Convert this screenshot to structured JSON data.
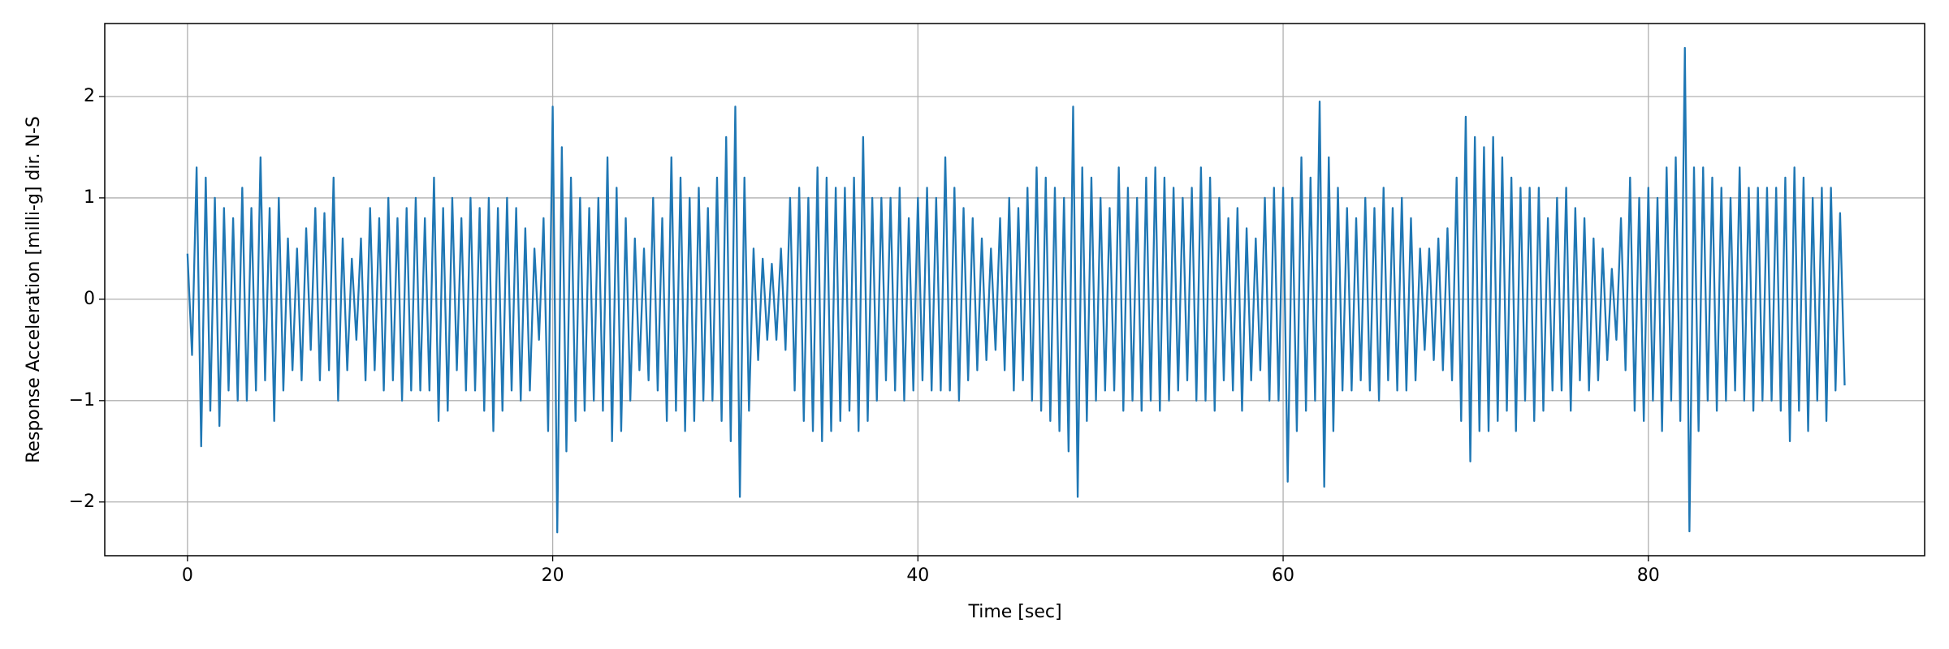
{
  "chart_data": {
    "type": "line",
    "xlabel": "Time [sec]",
    "ylabel": "Response Acceleration [milli-g] dir. N-S",
    "color": "#1f77b4",
    "grid": true,
    "xlim": [
      -4.53,
      95.13
    ],
    "ylim": [
      -2.53,
      2.72
    ],
    "xticks": [
      0,
      20,
      40,
      60,
      80
    ],
    "yticks": [
      {
        "value": -2,
        "label": "−2"
      },
      {
        "value": -1,
        "label": "−1"
      },
      0,
      1,
      2
    ],
    "x": [
      0,
      0.25,
      0.5,
      0.75,
      1,
      1.25,
      1.5,
      1.75,
      2,
      2.25,
      2.5,
      2.75,
      3,
      3.25,
      3.5,
      3.75,
      4,
      4.25,
      4.5,
      4.75,
      5,
      5.25,
      5.5,
      5.75,
      6,
      6.25,
      6.5,
      6.75,
      7,
      7.25,
      7.5,
      7.75,
      8,
      8.25,
      8.5,
      8.75,
      9,
      9.25,
      9.5,
      9.75,
      10,
      10.25,
      10.5,
      10.75,
      11,
      11.25,
      11.5,
      11.75,
      12,
      12.25,
      12.5,
      12.75,
      13,
      13.25,
      13.5,
      13.75,
      14,
      14.25,
      14.5,
      14.75,
      15,
      15.25,
      15.5,
      15.75,
      16,
      16.25,
      16.5,
      16.75,
      17,
      17.25,
      17.5,
      17.75,
      18,
      18.25,
      18.5,
      18.75,
      19,
      19.25,
      19.5,
      19.75,
      20,
      20.25,
      20.5,
      20.75,
      21,
      21.25,
      21.5,
      21.75,
      22,
      22.25,
      22.5,
      22.75,
      23,
      23.25,
      23.5,
      23.75,
      24,
      24.25,
      24.5,
      24.75,
      25,
      25.25,
      25.5,
      25.75,
      26,
      26.25,
      26.5,
      26.75,
      27,
      27.25,
      27.5,
      27.75,
      28,
      28.25,
      28.5,
      28.75,
      29,
      29.25,
      29.5,
      29.75,
      30,
      30.25,
      30.5,
      30.75,
      31,
      31.25,
      31.5,
      31.75,
      32,
      32.25,
      32.5,
      32.75,
      33,
      33.25,
      33.5,
      33.75,
      34,
      34.25,
      34.5,
      34.75,
      35,
      35.25,
      35.5,
      35.75,
      36,
      36.25,
      36.5,
      36.75,
      37,
      37.25,
      37.5,
      37.75,
      38,
      38.25,
      38.5,
      38.75,
      39,
      39.25,
      39.5,
      39.75,
      40,
      40.25,
      40.5,
      40.75,
      41,
      41.25,
      41.5,
      41.75,
      42,
      42.25,
      42.5,
      42.75,
      43,
      43.25,
      43.5,
      43.75,
      44,
      44.25,
      44.5,
      44.75,
      45,
      45.25,
      45.5,
      45.75,
      46,
      46.25,
      46.5,
      46.75,
      47,
      47.25,
      47.5,
      47.75,
      48,
      48.25,
      48.5,
      48.75,
      49,
      49.25,
      49.5,
      49.75,
      50,
      50.25,
      50.5,
      50.75,
      51,
      51.25,
      51.5,
      51.75,
      52,
      52.25,
      52.5,
      52.75,
      53,
      53.25,
      53.5,
      53.75,
      54,
      54.25,
      54.5,
      54.75,
      55,
      55.25,
      55.5,
      55.75,
      56,
      56.25,
      56.5,
      56.75,
      57,
      57.25,
      57.5,
      57.75,
      58,
      58.25,
      58.5,
      58.75,
      59,
      59.25,
      59.5,
      59.75,
      60,
      60.25,
      60.5,
      60.75,
      61,
      61.25,
      61.5,
      61.75,
      62,
      62.25,
      62.5,
      62.75,
      63,
      63.25,
      63.5,
      63.75,
      64,
      64.25,
      64.5,
      64.75,
      65,
      65.25,
      65.5,
      65.75,
      66,
      66.25,
      66.5,
      66.75,
      67,
      67.25,
      67.5,
      67.75,
      68,
      68.25,
      68.5,
      68.75,
      69,
      69.25,
      69.5,
      69.75,
      70,
      70.25,
      70.5,
      70.75,
      71,
      71.25,
      71.5,
      71.75,
      72,
      72.25,
      72.5,
      72.75,
      73,
      73.25,
      73.5,
      73.75,
      74,
      74.25,
      74.5,
      74.75,
      75,
      75.25,
      75.5,
      75.75,
      76,
      76.25,
      76.5,
      76.75,
      77,
      77.25,
      77.5,
      77.75,
      78,
      78.25,
      78.5,
      78.75,
      79,
      79.25,
      79.5,
      79.75,
      80,
      80.25,
      80.5,
      80.75,
      81,
      81.25,
      81.5,
      81.75,
      82,
      82.25,
      82.5,
      82.75,
      83,
      83.25,
      83.5,
      83.75,
      84,
      84.25,
      84.5,
      84.75,
      85,
      85.25,
      85.5,
      85.75,
      86,
      86.25,
      86.5,
      86.75,
      87,
      87.25,
      87.5,
      87.75,
      88,
      88.25,
      88.5,
      88.75,
      89,
      89.25,
      89.5,
      89.75,
      90,
      90.25,
      90.5,
      90.75
    ],
    "values": [
      0.45,
      -0.55,
      1.3,
      -1.45,
      1.2,
      -1.1,
      1.0,
      -1.25,
      0.9,
      -0.9,
      0.8,
      -1.0,
      1.1,
      -1.0,
      0.9,
      -0.9,
      1.4,
      -0.8,
      0.9,
      -1.2,
      1.0,
      -0.9,
      0.6,
      -0.7,
      0.5,
      -0.8,
      0.7,
      -0.5,
      0.9,
      -0.8,
      0.85,
      -0.7,
      1.2,
      -1.0,
      0.6,
      -0.7,
      0.4,
      -0.4,
      0.6,
      -0.8,
      0.9,
      -0.7,
      0.8,
      -0.9,
      1.0,
      -0.8,
      0.8,
      -1.0,
      0.9,
      -0.9,
      1.0,
      -0.9,
      0.8,
      -0.9,
      1.2,
      -1.2,
      0.9,
      -1.1,
      1.0,
      -0.7,
      0.8,
      -0.9,
      1.0,
      -0.9,
      0.9,
      -1.1,
      1.0,
      -1.3,
      0.9,
      -1.1,
      1.0,
      -0.9,
      0.9,
      -1.0,
      0.7,
      -0.9,
      0.5,
      -0.4,
      0.8,
      -1.3,
      1.9,
      -2.3,
      1.5,
      -1.5,
      1.2,
      -1.2,
      1.0,
      -1.1,
      0.9,
      -1.0,
      1.0,
      -1.1,
      1.4,
      -1.4,
      1.1,
      -1.3,
      0.8,
      -1.0,
      0.6,
      -0.7,
      0.5,
      -0.8,
      1.0,
      -0.9,
      0.8,
      -1.2,
      1.4,
      -1.1,
      1.2,
      -1.3,
      1.0,
      -1.2,
      1.1,
      -1.0,
      0.9,
      -1.0,
      1.2,
      -1.2,
      1.6,
      -1.4,
      1.9,
      -1.95,
      1.2,
      -1.1,
      0.5,
      -0.6,
      0.4,
      -0.4,
      0.35,
      -0.4,
      0.5,
      -0.5,
      1.0,
      -0.9,
      1.1,
      -1.2,
      1.0,
      -1.3,
      1.3,
      -1.4,
      1.2,
      -1.3,
      1.1,
      -1.2,
      1.1,
      -1.1,
      1.2,
      -1.3,
      1.6,
      -1.2,
      1.0,
      -1.0,
      1.0,
      -0.8,
      1.0,
      -0.9,
      1.1,
      -1.0,
      0.8,
      -0.9,
      1.0,
      -0.8,
      1.1,
      -0.9,
      1.0,
      -0.9,
      1.4,
      -0.9,
      1.1,
      -1.0,
      0.9,
      -0.8,
      0.8,
      -0.7,
      0.6,
      -0.6,
      0.5,
      -0.5,
      0.8,
      -0.7,
      1.0,
      -0.9,
      0.9,
      -0.8,
      1.1,
      -1.0,
      1.3,
      -1.1,
      1.2,
      -1.2,
      1.1,
      -1.3,
      1.0,
      -1.5,
      1.9,
      -1.95,
      1.3,
      -1.2,
      1.2,
      -1.0,
      1.0,
      -0.9,
      0.9,
      -0.9,
      1.3,
      -1.1,
      1.1,
      -1.0,
      1.0,
      -1.1,
      1.2,
      -1.0,
      1.3,
      -1.1,
      1.2,
      -1.0,
      1.1,
      -0.9,
      1.0,
      -0.8,
      1.1,
      -1.0,
      1.3,
      -1.0,
      1.2,
      -1.1,
      1.0,
      -0.8,
      0.8,
      -0.9,
      0.9,
      -1.1,
      0.7,
      -0.8,
      0.6,
      -0.7,
      1.0,
      -1.0,
      1.1,
      -1.0,
      1.1,
      -1.8,
      1.0,
      -1.3,
      1.4,
      -1.1,
      1.2,
      -1.0,
      1.95,
      -1.85,
      1.4,
      -1.3,
      1.1,
      -0.9,
      0.9,
      -0.9,
      0.8,
      -0.8,
      1.0,
      -0.9,
      0.9,
      -1.0,
      1.1,
      -0.8,
      0.9,
      -0.9,
      1.0,
      -0.9,
      0.8,
      -0.8,
      0.5,
      -0.5,
      0.5,
      -0.6,
      0.6,
      -0.7,
      0.7,
      -0.8,
      1.2,
      -1.2,
      1.8,
      -1.6,
      1.6,
      -1.3,
      1.5,
      -1.3,
      1.6,
      -1.2,
      1.4,
      -1.1,
      1.2,
      -1.3,
      1.1,
      -1.0,
      1.1,
      -1.2,
      1.1,
      -1.1,
      0.8,
      -0.9,
      1.0,
      -0.9,
      1.1,
      -1.1,
      0.9,
      -0.8,
      0.8,
      -0.9,
      0.6,
      -0.8,
      0.5,
      -0.6,
      0.3,
      -0.4,
      0.8,
      -0.7,
      1.2,
      -1.1,
      1.0,
      -1.2,
      1.1,
      -1.0,
      1.0,
      -1.3,
      1.3,
      -1.0,
      1.4,
      -1.2,
      2.48,
      -2.29,
      1.3,
      -1.3,
      1.3,
      -1.0,
      1.2,
      -1.1,
      1.1,
      -1.0,
      1.0,
      -0.9,
      1.3,
      -1.0,
      1.1,
      -1.1,
      1.1,
      -1.0,
      1.1,
      -1.0,
      1.1,
      -1.1,
      1.2,
      -1.4,
      1.3,
      -1.1,
      1.2,
      -1.3,
      1.0,
      -1.0,
      1.1,
      -1.2,
      1.1,
      -0.9,
      0.85,
      -0.85
    ]
  }
}
